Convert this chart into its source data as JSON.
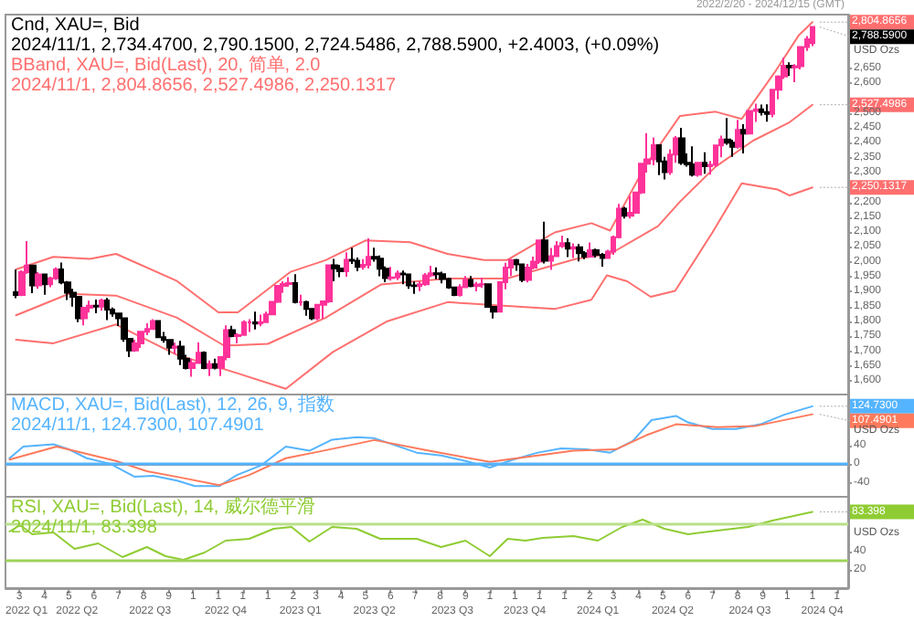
{
  "chart_data": [
    {
      "type": "candlestick",
      "title": "Cnd, XAU=, Bid",
      "colors": [
        "#000000",
        "#ff3399",
        "#ff3399",
        "#000000",
        "#ff3399",
        "#000000",
        "#ff3399",
        "#ff3399",
        "#000000",
        "#000000",
        "#000000",
        "#000000",
        "#ff3399",
        "#ff3399",
        "#000000",
        "#ff3399",
        "#000000",
        "#000000",
        "#000000",
        "#000000",
        "#000000",
        "#ff3399",
        "#ff3399",
        "#ff3399",
        "#ff3399",
        "#000000",
        "#000000",
        "#000000",
        "#ff3399",
        "#000000",
        "#000000",
        "#ff3399",
        "#ff3399",
        "#000000",
        "#ff3399",
        "#000000",
        "#ff3399",
        "#ff3399",
        "#000000",
        "#ff3399",
        "#ff3399",
        "#ff3399",
        "#000000",
        "#ff3399",
        "#ff3399",
        "#ff3399",
        "#ff3399",
        "#ff3399",
        "#ff3399",
        "#000000",
        "#ff3399",
        "#000000",
        "#000000",
        "#ff3399",
        "#ff3399",
        "#ff3399",
        "#000000",
        "#000000",
        "#ff3399",
        "#000000",
        "#000000",
        "#ff3399",
        "#ff3399",
        "#000000",
        "#000000",
        "#000000",
        "#ff3399",
        "#ff3399",
        "#000000",
        "#000000",
        "#000000",
        "#ff3399",
        "#ff3399",
        "#ff3399",
        "#000000",
        "#000000",
        "#000000",
        "#000000",
        "#ff3399",
        "#ff3399",
        "#000000",
        "#ff3399",
        "#ff3399",
        "#000000",
        "#000000",
        "#ff3399",
        "#ff3399",
        "#ff3399",
        "#000000",
        "#000000",
        "#ff3399",
        "#ff3399",
        "#ff3399",
        "#000000",
        "#ff3399",
        "#ff3399",
        "#ff3399",
        "#000000",
        "#ff3399",
        "#000000",
        "#000000",
        "#ff3399",
        "#000000",
        "#000000",
        "#ff3399",
        "#ff3399",
        "#ff3399",
        "#000000",
        "#ff3399",
        "#ff3399",
        "#ff3399",
        "#ff3399",
        "#ff3399",
        "#000000",
        "#000000",
        "#ff3399",
        "#ff3399",
        "#000000",
        "#000000",
        "#000000",
        "#ff3399",
        "#000000",
        "#ff3399",
        "#ff3399",
        "#ff3399",
        "#000000",
        "#000000",
        "#ff3399",
        "#000000",
        "#ff3399",
        "#ff3399",
        "#000000",
        "#000000",
        "#ff3399",
        "#ff3399",
        "#ff3399",
        "#000000",
        "#ff3399",
        "#ff3399",
        "#ff3399",
        "#ff3399"
      ],
      "subtitle": "2022/2/20 - 2024/12/15 (GMT)",
      "ylabel": "USD Ozs",
      "tick_labels": "y",
      "annotations": [
        "2024/11/1, 2,734.4700, 2,790.1500, 2,724.5486, 2,788.5900, +2.4003, (+0.09%)",
        "BBand, XAU=, Bid(Last), 20, 简单, 2.0",
        "2024/11/1, 2,804.8656, 2,527.4986, 2,250.1317",
        {
          "text": "2,788.5900",
          "x": "2024-11-01",
          "y": 2788.59
        }
      ],
      "x": [
        "2022-02-25",
        "2022-03-04",
        "2022-03-11",
        "2022-03-18",
        "2022-03-25",
        "2022-04-01",
        "2022-04-08",
        "2022-04-15",
        "2022-04-22",
        "2022-04-29",
        "2022-05-06",
        "2022-05-13",
        "2022-05-20",
        "2022-05-27",
        "2022-06-03",
        "2022-06-10",
        "2022-06-17",
        "2022-06-24",
        "2022-07-01",
        "2022-07-08",
        "2022-07-15",
        "2022-07-22",
        "2022-07-29",
        "2022-08-05",
        "2022-08-12",
        "2022-08-19",
        "2022-08-26",
        "2022-09-02",
        "2022-09-09",
        "2022-09-16",
        "2022-09-23",
        "2022-09-30",
        "2022-10-07",
        "2022-10-14",
        "2022-10-21",
        "2022-10-28",
        "2022-11-04",
        "2022-11-11",
        "2022-11-18",
        "2022-11-25",
        "2022-12-02",
        "2022-12-09",
        "2022-12-16",
        "2022-12-23",
        "2022-12-30",
        "2023-01-06",
        "2023-01-13",
        "2023-01-20",
        "2023-01-27",
        "2023-02-03",
        "2023-02-10",
        "2023-02-17",
        "2023-02-24",
        "2023-03-03",
        "2023-03-10",
        "2023-03-17",
        "2023-03-24",
        "2023-03-31",
        "2023-04-07",
        "2023-04-14",
        "2023-04-21",
        "2023-04-28",
        "2023-05-05",
        "2023-05-12",
        "2023-05-19",
        "2023-05-26",
        "2023-06-02",
        "2023-06-09",
        "2023-06-16",
        "2023-06-23",
        "2023-06-30",
        "2023-07-07",
        "2023-07-14",
        "2023-07-21",
        "2023-07-28",
        "2023-08-04",
        "2023-08-11",
        "2023-08-18",
        "2023-08-25",
        "2023-09-01",
        "2023-09-08",
        "2023-09-15",
        "2023-09-22",
        "2023-09-29",
        "2023-10-06",
        "2023-10-13",
        "2023-10-20",
        "2023-10-27",
        "2023-11-03",
        "2023-11-10",
        "2023-11-17",
        "2023-11-24",
        "2023-12-01",
        "2023-12-08",
        "2023-12-15",
        "2023-12-22",
        "2023-12-29",
        "2024-01-05",
        "2024-01-12",
        "2024-01-19",
        "2024-01-26",
        "2024-02-02",
        "2024-02-09",
        "2024-02-16",
        "2024-02-23",
        "2024-03-01",
        "2024-03-08",
        "2024-03-15",
        "2024-03-22",
        "2024-03-29",
        "2024-04-05",
        "2024-04-12",
        "2024-04-19",
        "2024-04-26",
        "2024-05-03",
        "2024-05-10",
        "2024-05-17",
        "2024-05-24",
        "2024-05-31",
        "2024-06-07",
        "2024-06-14",
        "2024-06-21",
        "2024-06-28",
        "2024-07-05",
        "2024-07-12",
        "2024-07-19",
        "2024-07-26",
        "2024-08-02",
        "2024-08-09",
        "2024-08-16",
        "2024-08-23",
        "2024-08-30",
        "2024-09-06",
        "2024-09-13",
        "2024-09-20",
        "2024-09-27",
        "2024-10-04",
        "2024-10-11",
        "2024-10-18",
        "2024-10-25",
        "2024-11-01"
      ],
      "ohlc": [
        [
          1898,
          1974,
          1878,
          1889
        ],
        [
          1889,
          1972,
          1885,
          1966
        ],
        [
          1966,
          2070,
          1960,
          1988
        ],
        [
          1988,
          1990,
          1895,
          1921
        ],
        [
          1921,
          1966,
          1910,
          1958
        ],
        [
          1958,
          1960,
          1890,
          1925
        ],
        [
          1925,
          1950,
          1915,
          1945
        ],
        [
          1945,
          1982,
          1940,
          1975
        ],
        [
          1975,
          1998,
          1925,
          1931
        ],
        [
          1931,
          1936,
          1872,
          1897
        ],
        [
          1897,
          1910,
          1850,
          1883
        ],
        [
          1883,
          1885,
          1798,
          1811
        ],
        [
          1811,
          1850,
          1787,
          1846
        ],
        [
          1846,
          1870,
          1830,
          1853
        ],
        [
          1853,
          1874,
          1828,
          1850
        ],
        [
          1850,
          1877,
          1836,
          1871
        ],
        [
          1871,
          1879,
          1805,
          1840
        ],
        [
          1840,
          1847,
          1816,
          1827
        ],
        [
          1827,
          1829,
          1785,
          1811
        ],
        [
          1811,
          1814,
          1732,
          1742
        ],
        [
          1742,
          1745,
          1681,
          1703
        ],
        [
          1703,
          1739,
          1698,
          1727
        ],
        [
          1727,
          1767,
          1711,
          1766
        ],
        [
          1766,
          1794,
          1754,
          1775
        ],
        [
          1775,
          1808,
          1772,
          1802
        ],
        [
          1802,
          1805,
          1745,
          1747
        ],
        [
          1747,
          1765,
          1729,
          1738
        ],
        [
          1738,
          1741,
          1688,
          1712
        ],
        [
          1712,
          1729,
          1691,
          1716
        ],
        [
          1716,
          1735,
          1654,
          1675
        ],
        [
          1675,
          1688,
          1639,
          1644
        ],
        [
          1644,
          1675,
          1615,
          1661
        ],
        [
          1661,
          1730,
          1660,
          1695
        ],
        [
          1695,
          1700,
          1640,
          1644
        ],
        [
          1644,
          1669,
          1617,
          1657
        ],
        [
          1657,
          1675,
          1639,
          1645
        ],
        [
          1645,
          1682,
          1617,
          1681
        ],
        [
          1681,
          1787,
          1670,
          1771
        ],
        [
          1771,
          1786,
          1747,
          1751
        ],
        [
          1751,
          1761,
          1727,
          1755
        ],
        [
          1755,
          1804,
          1753,
          1797
        ],
        [
          1797,
          1808,
          1765,
          1797
        ],
        [
          1797,
          1833,
          1773,
          1793
        ],
        [
          1793,
          1823,
          1784,
          1798
        ],
        [
          1798,
          1833,
          1797,
          1824
        ],
        [
          1824,
          1869,
          1822,
          1866
        ],
        [
          1866,
          1922,
          1862,
          1920
        ],
        [
          1920,
          1935,
          1896,
          1926
        ],
        [
          1926,
          1949,
          1917,
          1929
        ],
        [
          1929,
          1959,
          1861,
          1865
        ],
        [
          1865,
          1890,
          1853,
          1865
        ],
        [
          1865,
          1870,
          1819,
          1842
        ],
        [
          1842,
          1845,
          1805,
          1811
        ],
        [
          1811,
          1858,
          1804,
          1856
        ],
        [
          1856,
          1870,
          1809,
          1868
        ],
        [
          1868,
          1990,
          1862,
          1989
        ],
        [
          1989,
          2010,
          1935,
          1978
        ],
        [
          1978,
          1990,
          1949,
          1969
        ],
        [
          1969,
          2032,
          1950,
          2007
        ],
        [
          2007,
          2048,
          1993,
          2004
        ],
        [
          2004,
          2015,
          1969,
          1983
        ],
        [
          1983,
          2009,
          1974,
          1990
        ],
        [
          1990,
          2079,
          1978,
          2017
        ],
        [
          2017,
          2048,
          2001,
          2011
        ],
        [
          2011,
          2022,
          1952,
          1977
        ],
        [
          1977,
          1985,
          1932,
          1946
        ],
        [
          1946,
          1983,
          1937,
          1948
        ],
        [
          1948,
          1971,
          1939,
          1961
        ],
        [
          1961,
          1971,
          1925,
          1958
        ],
        [
          1958,
          1959,
          1910,
          1921
        ],
        [
          1921,
          1934,
          1893,
          1919
        ],
        [
          1919,
          1935,
          1902,
          1925
        ],
        [
          1925,
          1963,
          1920,
          1955
        ],
        [
          1955,
          1987,
          1949,
          1962
        ],
        [
          1962,
          1982,
          1942,
          1959
        ],
        [
          1959,
          1967,
          1928,
          1943
        ],
        [
          1943,
          1947,
          1910,
          1914
        ],
        [
          1914,
          1916,
          1885,
          1889
        ],
        [
          1889,
          1925,
          1884,
          1915
        ],
        [
          1915,
          1953,
          1913,
          1940
        ],
        [
          1940,
          1953,
          1915,
          1919
        ],
        [
          1919,
          1933,
          1901,
          1924
        ],
        [
          1924,
          1947,
          1913,
          1925
        ],
        [
          1925,
          1928,
          1846,
          1849
        ],
        [
          1849,
          1850,
          1810,
          1833
        ],
        [
          1833,
          1933,
          1832,
          1932
        ],
        [
          1932,
          1997,
          1908,
          1981
        ],
        [
          1981,
          2010,
          1953,
          2006
        ],
        [
          2006,
          2010,
          1970,
          1992
        ],
        [
          1992,
          1993,
          1932,
          1940
        ],
        [
          1940,
          1993,
          1931,
          1981
        ],
        [
          1981,
          2018,
          1975,
          2001
        ],
        [
          2001,
          2075,
          1993,
          2072
        ],
        [
          2072,
          2135,
          1995,
          2004
        ],
        [
          2004,
          2047,
          1973,
          2019
        ],
        [
          2019,
          2070,
          2016,
          2053
        ],
        [
          2053,
          2088,
          2047,
          2063
        ],
        [
          2063,
          2079,
          2016,
          2045
        ],
        [
          2045,
          2062,
          2013,
          2049
        ],
        [
          2049,
          2060,
          2002,
          2029
        ],
        [
          2029,
          2036,
          2009,
          2018
        ],
        [
          2018,
          2065,
          2016,
          2039
        ],
        [
          2039,
          2045,
          2015,
          2024
        ],
        [
          2024,
          2030,
          1984,
          2013
        ],
        [
          2013,
          2041,
          2011,
          2035
        ],
        [
          2035,
          2088,
          2024,
          2083
        ],
        [
          2083,
          2195,
          2079,
          2179
        ],
        [
          2179,
          2185,
          2146,
          2155
        ],
        [
          2155,
          2222,
          2146,
          2165
        ],
        [
          2165,
          2236,
          2164,
          2233
        ],
        [
          2233,
          2330,
          2228,
          2330
        ],
        [
          2330,
          2432,
          2300,
          2344
        ],
        [
          2344,
          2418,
          2324,
          2392
        ],
        [
          2392,
          2392,
          2291,
          2337
        ],
        [
          2337,
          2353,
          2277,
          2301
        ],
        [
          2301,
          2378,
          2292,
          2360
        ],
        [
          2360,
          2422,
          2333,
          2415
        ],
        [
          2415,
          2450,
          2326,
          2333
        ],
        [
          2333,
          2364,
          2320,
          2327
        ],
        [
          2327,
          2388,
          2287,
          2293
        ],
        [
          2293,
          2335,
          2286,
          2333
        ],
        [
          2333,
          2368,
          2296,
          2321
        ],
        [
          2321,
          2339,
          2293,
          2326
        ],
        [
          2326,
          2392,
          2319,
          2391
        ],
        [
          2391,
          2424,
          2351,
          2411
        ],
        [
          2411,
          2483,
          2393,
          2400
        ],
        [
          2400,
          2410,
          2353,
          2386
        ],
        [
          2386,
          2477,
          2380,
          2443
        ],
        [
          2443,
          2462,
          2364,
          2431
        ],
        [
          2431,
          2509,
          2428,
          2507
        ],
        [
          2507,
          2531,
          2470,
          2512
        ],
        [
          2512,
          2528,
          2491,
          2503
        ],
        [
          2503,
          2529,
          2471,
          2497
        ],
        [
          2497,
          2581,
          2485,
          2578
        ],
        [
          2578,
          2626,
          2546,
          2622
        ],
        [
          2622,
          2685,
          2614,
          2658
        ],
        [
          2658,
          2670,
          2624,
          2653
        ],
        [
          2653,
          2664,
          2603,
          2657
        ],
        [
          2657,
          2722,
          2646,
          2721
        ],
        [
          2721,
          2758,
          2708,
          2747
        ],
        [
          2734.47,
          2790.15,
          2724.5486,
          2788.59
        ]
      ],
      "series": [
        {
          "type": "line",
          "color": "#ff6f6f",
          "x": [
            "2022-02-25",
            "2022-04-12",
            "2022-05-27",
            "2022-06-28",
            "2022-09-11",
            "2022-11-01",
            "2022-11-25",
            "2023-01-29",
            "2023-03-13",
            "2023-05-01",
            "2023-06-25",
            "2023-08-10",
            "2023-09-24",
            "2023-10-22",
            "2023-12-20",
            "2024-02-03",
            "2024-02-26",
            "2024-04-10",
            "2024-05-22",
            "2024-07-05",
            "2024-08-06",
            "2024-09-15",
            "2024-10-15",
            "2024-11-01"
          ],
          "values": [
            1975,
            2017,
            2010,
            2027,
            1936,
            1831,
            1831,
            1967,
            2006,
            2072,
            2066,
            2027,
            2006,
            2006,
            2099,
            2130,
            2105,
            2325,
            2490,
            2504,
            2480,
            2634,
            2760,
            2804.8656
          ],
          "value_labels": [
            null,
            null,
            null,
            null,
            null,
            null,
            null,
            null,
            null,
            null,
            null,
            null,
            null,
            null,
            null,
            null,
            null,
            null,
            null,
            null,
            null,
            null,
            null,
            "2,804.8656"
          ]
        },
        {
          "type": "line",
          "color": "#ff6f6f",
          "x": [
            "2022-02-25",
            "2022-05-01",
            "2022-06-28",
            "2022-09-11",
            "2022-11-08",
            "2023-01-01",
            "2023-03-13",
            "2023-05-20",
            "2023-08-10",
            "2023-10-22",
            "2024-01-15",
            "2024-02-26",
            "2024-04-25",
            "2024-05-22",
            "2024-07-05",
            "2024-08-20",
            "2024-10-04",
            "2024-11-01"
          ],
          "values": [
            1821,
            1893,
            1887,
            1813,
            1719,
            1725,
            1813,
            1924,
            1944,
            1944,
            2010,
            2027,
            2120,
            2202,
            2320,
            2407,
            2469,
            2527.4986
          ],
          "value_labels": [
            null,
            null,
            null,
            null,
            null,
            null,
            null,
            null,
            null,
            null,
            null,
            null,
            null,
            null,
            null,
            null,
            null,
            "2,527.4986"
          ]
        },
        {
          "type": "line",
          "color": "#ff6f6f",
          "x": [
            "2022-02-25",
            "2022-04-12",
            "2022-06-28",
            "2022-09-11",
            "2022-11-25",
            "2023-01-23",
            "2023-03-22",
            "2023-05-28",
            "2023-08-10",
            "2023-10-22",
            "2023-12-20",
            "2024-02-03",
            "2024-02-22",
            "2024-03-18",
            "2024-04-16",
            "2024-05-16",
            "2024-07-01",
            "2024-08-06",
            "2024-09-19",
            "2024-10-04",
            "2024-11-01"
          ],
          "values": [
            1739,
            1727,
            1790,
            1688,
            1626,
            1574,
            1698,
            1801,
            1865,
            1852,
            1842,
            1873,
            1955,
            1935,
            1883,
            1903,
            2099,
            2264,
            2243,
            2223,
            2250.1317
          ],
          "value_labels": [
            null,
            null,
            null,
            null,
            null,
            null,
            null,
            null,
            null,
            null,
            null,
            null,
            null,
            null,
            null,
            null,
            null,
            null,
            null,
            null,
            "2,250.1317"
          ]
        }
      ],
      "xlim": [
        "2022-02-12",
        "2024-12-15"
      ],
      "ylim": [
        1555,
        2830
      ],
      "yticks": [
        {
          "value": 1600,
          "label": "1,600"
        },
        {
          "value": 1650,
          "label": "1,650"
        },
        {
          "value": 1700,
          "label": "1,700"
        },
        {
          "value": 1750,
          "label": "1,750"
        },
        {
          "value": 1800,
          "label": "1,800"
        },
        {
          "value": 1850,
          "label": "1,850"
        },
        {
          "value": 1900,
          "label": "1,900"
        },
        {
          "value": 1950,
          "label": "1,950"
        },
        {
          "value": 2000,
          "label": "2,000"
        },
        {
          "value": 2050,
          "label": "2,050"
        },
        {
          "value": 2100,
          "label": "2,100"
        },
        {
          "value": 2150,
          "label": "2,150"
        },
        {
          "value": 2200,
          "label": "2,200"
        },
        {
          "value": 2300,
          "label": "2,300"
        },
        {
          "value": 2350,
          "label": "2,350"
        },
        {
          "value": 2400,
          "label": "2,400"
        },
        {
          "value": 2450,
          "label": "2,450"
        },
        {
          "value": 2500,
          "label": "2,500"
        },
        {
          "value": 2600,
          "label": "2,600"
        },
        {
          "value": 2650,
          "label": "2,650"
        }
      ]
    },
    {
      "type": "line",
      "title": "MACD, XAU=, Bid(Last), 12, 26, 9, 指数",
      "subtitle": "2024/11/1, 124.7300, 107.4901",
      "ylabel": "USD Ozs",
      "tick_labels": "y",
      "series": [
        {
          "color": "#55b4ff",
          "x": [
            "2022-02-17",
            "2022-03-06",
            "2022-04-12",
            "2022-05-01",
            "2022-05-23",
            "2022-06-21",
            "2022-07-21",
            "2022-08-13",
            "2022-09-11",
            "2022-10-03",
            "2022-11-02",
            "2022-11-24",
            "2022-12-24",
            "2023-01-23",
            "2023-02-21",
            "2023-03-21",
            "2023-04-20",
            "2023-05-12",
            "2023-07-03",
            "2023-08-02",
            "2023-09-01",
            "2023-10-01",
            "2023-10-30",
            "2023-11-29",
            "2023-12-28",
            "2024-01-28",
            "2024-02-26",
            "2024-03-25",
            "2024-04-17",
            "2024-05-17",
            "2024-06-01",
            "2024-07-01",
            "2024-07-30",
            "2024-08-29",
            "2024-09-28",
            "2024-11-01"
          ],
          "values": [
            13,
            38,
            43,
            32,
            13,
            1,
            -27,
            -25,
            -35,
            -47,
            -47,
            -23,
            -2,
            38,
            29,
            53,
            58,
            56,
            25,
            19,
            7,
            -7,
            10,
            25,
            34,
            32,
            25,
            50,
            95,
            104,
            90,
            76,
            76,
            86,
            107,
            124.73
          ],
          "value_labels": [
            null,
            null,
            null,
            null,
            null,
            null,
            null,
            null,
            null,
            null,
            null,
            null,
            null,
            null,
            null,
            null,
            null,
            null,
            null,
            null,
            null,
            null,
            null,
            null,
            null,
            null,
            null,
            null,
            null,
            null,
            null,
            null,
            null,
            null,
            null,
            "124.7300"
          ]
        },
        {
          "color": "#ff7a5c",
          "x": [
            "2022-02-17",
            "2022-04-16",
            "2022-06-28",
            "2022-08-05",
            "2022-09-11",
            "2022-11-02",
            "2022-12-09",
            "2023-01-23",
            "2023-03-07",
            "2023-05-12",
            "2023-07-18",
            "2023-10-01",
            "2023-11-29",
            "2024-01-12",
            "2024-03-04",
            "2024-04-10",
            "2024-05-17",
            "2024-07-07",
            "2024-08-22",
            "2024-11-01"
          ],
          "values": [
            10,
            38,
            7,
            -15,
            -27,
            -45,
            -23,
            13,
            28,
            52,
            29,
            5,
            19,
            29,
            32,
            62,
            86,
            80,
            82,
            107.4901
          ],
          "value_labels": [
            null,
            null,
            null,
            null,
            null,
            null,
            null,
            null,
            null,
            null,
            null,
            null,
            null,
            null,
            null,
            null,
            null,
            null,
            null,
            "107.4901"
          ]
        }
      ],
      "ref_lines": [
        {
          "axis": "y",
          "value": 0,
          "color": "#55b4ff"
        }
      ],
      "xlim": [
        "2022-02-12",
        "2024-12-15"
      ],
      "ylim": [
        -70,
        150
      ],
      "yticks": [
        -40,
        0,
        40
      ]
    },
    {
      "type": "line",
      "title": "RSI, XAU=, Bid(Last), 14, 威尔德平滑",
      "subtitle": "2024/11/1, 83.398",
      "ylabel": "USD Ozs",
      "series": [
        {
          "color": "#8fcc33",
          "x": [
            "2022-02-17",
            "2022-03-02",
            "2022-03-17",
            "2022-04-12",
            "2022-05-08",
            "2022-06-06",
            "2022-07-06",
            "2022-08-05",
            "2022-08-28",
            "2022-09-19",
            "2022-10-15",
            "2022-11-10",
            "2022-12-09",
            "2023-01-08",
            "2023-01-30",
            "2023-02-21",
            "2023-03-21",
            "2023-04-20",
            "2023-05-19",
            "2023-07-03",
            "2023-08-02",
            "2023-09-01",
            "2023-10-01",
            "2023-10-23",
            "2023-11-14",
            "2023-12-05",
            "2024-01-12",
            "2024-02-11",
            "2024-03-12",
            "2024-04-06",
            "2024-05-03",
            "2024-06-01",
            "2024-07-07",
            "2024-08-14",
            "2024-09-13",
            "2024-11-01"
          ],
          "values": [
            62,
            69,
            59,
            61,
            43,
            49,
            34,
            45,
            35,
            31,
            39,
            52,
            54,
            65,
            67,
            51,
            67,
            65,
            54,
            54,
            45,
            52,
            35,
            54,
            52,
            55,
            57,
            52,
            67,
            75,
            65,
            59,
            63,
            67,
            74,
            83.398
          ],
          "value_labels": [
            null,
            null,
            null,
            null,
            null,
            null,
            null,
            null,
            null,
            null,
            null,
            null,
            null,
            null,
            null,
            null,
            null,
            null,
            null,
            null,
            null,
            null,
            null,
            null,
            null,
            null,
            null,
            null,
            null,
            null,
            null,
            null,
            null,
            null,
            null,
            "83.398"
          ]
        }
      ],
      "ref_lines": [
        {
          "axis": "y",
          "value": 70,
          "color": "#b9e08a"
        },
        {
          "axis": "y",
          "value": 30,
          "color": "#9fd25a"
        }
      ],
      "xlim": [
        "2022-02-12",
        "2024-12-15"
      ],
      "ylim": [
        0,
        100
      ],
      "yticks": [
        20,
        40
      ],
      "xticks": [
        {
          "value": "2022-03-01",
          "label": "3"
        },
        {
          "value": "2022-04-01",
          "label": "4"
        },
        {
          "value": "2022-05-01",
          "label": "5"
        },
        {
          "value": "2022-06-01",
          "label": "6"
        },
        {
          "value": "2022-07-01",
          "label": "7"
        },
        {
          "value": "2022-08-01",
          "label": "8"
        },
        {
          "value": "2022-09-01",
          "label": "9"
        },
        {
          "value": "2022-10-01",
          "label": "1"
        },
        {
          "value": "2022-11-01",
          "label": "1"
        },
        {
          "value": "2022-12-01",
          "label": "1"
        },
        {
          "value": "2023-01-01",
          "label": "1"
        },
        {
          "value": "2023-02-01",
          "label": "2"
        },
        {
          "value": "2023-03-01",
          "label": "3"
        },
        {
          "value": "2023-04-01",
          "label": "4"
        },
        {
          "value": "2023-05-01",
          "label": "5"
        },
        {
          "value": "2023-06-01",
          "label": "6"
        },
        {
          "value": "2023-07-01",
          "label": "7"
        },
        {
          "value": "2023-08-01",
          "label": "8"
        },
        {
          "value": "2023-09-01",
          "label": "9"
        },
        {
          "value": "2023-10-01",
          "label": "1"
        },
        {
          "value": "2023-11-01",
          "label": "1"
        },
        {
          "value": "2023-12-01",
          "label": "1"
        },
        {
          "value": "2024-01-01",
          "label": "1"
        },
        {
          "value": "2024-02-01",
          "label": "2"
        },
        {
          "value": "2024-03-01",
          "label": "3"
        },
        {
          "value": "2024-04-01",
          "label": "4"
        },
        {
          "value": "2024-05-01",
          "label": "5"
        },
        {
          "value": "2024-06-01",
          "label": "6"
        },
        {
          "value": "2024-07-01",
          "label": "7"
        },
        {
          "value": "2024-08-01",
          "label": "8"
        },
        {
          "value": "2024-09-01",
          "label": "9"
        },
        {
          "value": "2024-10-01",
          "label": "1"
        },
        {
          "value": "2024-11-01",
          "label": "1"
        },
        {
          "value": "2024-12-01",
          "label": "1"
        }
      ],
      "x2lim": [
        "2022-02-12",
        "2024-12-15"
      ],
      "x2ticks": [
        {
          "value": "2022-03-10",
          "label": "2022 Q1"
        },
        {
          "value": "2022-05-11",
          "label": "2022 Q2"
        },
        {
          "value": "2022-08-09",
          "label": "2022 Q3"
        },
        {
          "value": "2022-11-10",
          "label": "2022 Q4"
        },
        {
          "value": "2023-02-10",
          "label": "2023 Q1"
        },
        {
          "value": "2023-05-12",
          "label": "2023 Q2"
        },
        {
          "value": "2023-08-16",
          "label": "2023 Q3"
        },
        {
          "value": "2023-11-13",
          "label": "2023 Q4"
        },
        {
          "value": "2024-02-11",
          "label": "2024 Q1"
        },
        {
          "value": "2024-05-13",
          "label": "2024 Q2"
        },
        {
          "value": "2024-08-16",
          "label": "2024 Q3"
        },
        {
          "value": "2024-11-13",
          "label": "2024 Q4"
        }
      ]
    }
  ]
}
